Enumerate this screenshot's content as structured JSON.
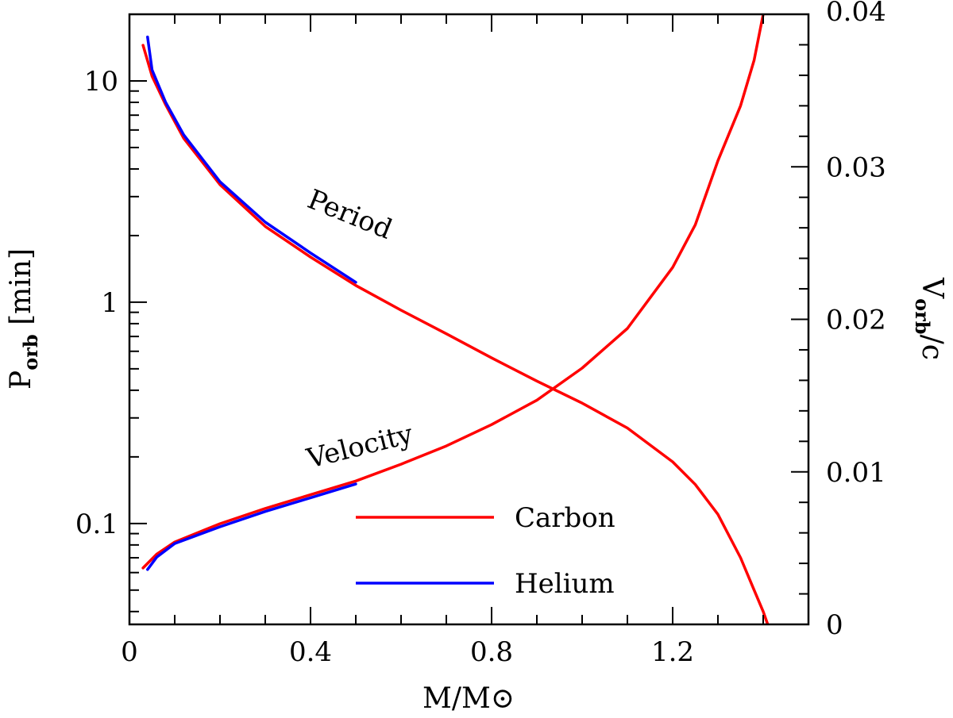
{
  "chart_data": {
    "type": "line",
    "title": "",
    "xlabel": "M/M⊙",
    "ylabel_left": {
      "base": "P",
      "sub": "orb",
      "rest": " [min]"
    },
    "ylabel_right": {
      "base": "V",
      "sub": "orb",
      "rest": "/c"
    },
    "x_range": [
      0,
      1.5
    ],
    "y_left_range": [
      0.035,
      20
    ],
    "y_left_scale": "log",
    "y_right_range": [
      0,
      0.04
    ],
    "x_ticks": [
      "0",
      "0.4",
      "0.8",
      "1.2"
    ],
    "x_tick_values": [
      0,
      0.4,
      0.8,
      1.2
    ],
    "y_left_ticks": [
      "0.1",
      "1",
      "10"
    ],
    "y_left_tick_values": [
      0.1,
      1,
      10
    ],
    "y_right_ticks": [
      "0",
      "0.01",
      "0.02",
      "0.03",
      "0.04"
    ],
    "y_right_tick_values": [
      0,
      0.01,
      0.02,
      0.03,
      0.04
    ],
    "annotations": {
      "period": "Period",
      "velocity": "Velocity"
    },
    "legend": {
      "position": "bottom-center",
      "entries": [
        "Carbon",
        "Helium"
      ]
    },
    "colors": {
      "Carbon": "#ff0000",
      "Helium": "#0000ff"
    },
    "series": [
      {
        "name": "Carbon",
        "quantity": "period",
        "axis": "left",
        "x": [
          0.03,
          0.05,
          0.08,
          0.12,
          0.2,
          0.3,
          0.4,
          0.5,
          0.6,
          0.7,
          0.8,
          0.9,
          1.0,
          1.1,
          1.2,
          1.25,
          1.3,
          1.35,
          1.38,
          1.4,
          1.41
        ],
        "y": [
          14.5,
          10.5,
          7.8,
          5.5,
          3.4,
          2.2,
          1.6,
          1.19,
          0.92,
          0.72,
          0.56,
          0.44,
          0.35,
          0.27,
          0.19,
          0.15,
          0.11,
          0.07,
          0.05,
          0.04,
          0.035
        ]
      },
      {
        "name": "Helium",
        "quantity": "period",
        "axis": "left",
        "x": [
          0.04,
          0.05,
          0.08,
          0.12,
          0.2,
          0.3,
          0.4,
          0.5
        ],
        "y": [
          15.8,
          11.2,
          8.0,
          5.7,
          3.5,
          2.3,
          1.67,
          1.23
        ]
      },
      {
        "name": "Carbon",
        "quantity": "velocity",
        "axis": "right",
        "x": [
          0.03,
          0.06,
          0.1,
          0.2,
          0.3,
          0.4,
          0.5,
          0.6,
          0.7,
          0.8,
          0.9,
          1.0,
          1.1,
          1.2,
          1.25,
          1.3,
          1.35,
          1.38,
          1.4,
          1.41
        ],
        "y": [
          0.0037,
          0.0046,
          0.0054,
          0.0066,
          0.0076,
          0.0085,
          0.0094,
          0.0105,
          0.0117,
          0.0131,
          0.0147,
          0.0168,
          0.0194,
          0.0234,
          0.0262,
          0.0304,
          0.034,
          0.037,
          0.04,
          0.042
        ]
      },
      {
        "name": "Helium",
        "quantity": "velocity",
        "axis": "right",
        "x": [
          0.04,
          0.06,
          0.1,
          0.2,
          0.3,
          0.4,
          0.5
        ],
        "y": [
          0.0036,
          0.0044,
          0.0053,
          0.0064,
          0.0074,
          0.0083,
          0.0092
        ]
      }
    ]
  }
}
